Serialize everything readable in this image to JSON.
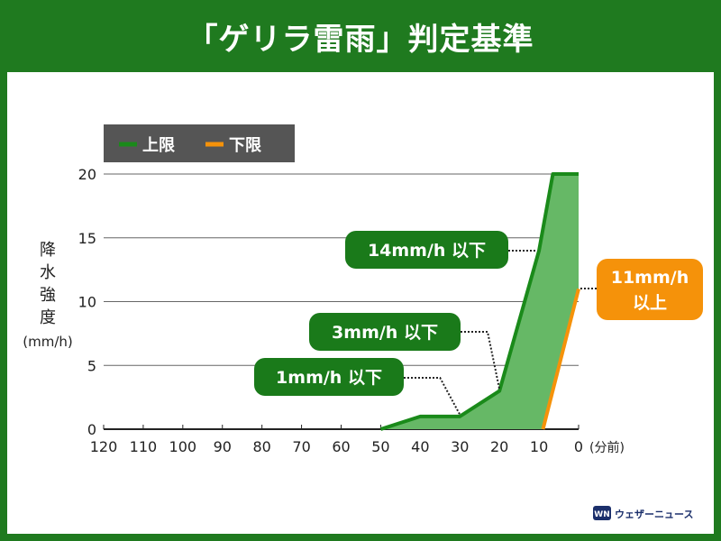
{
  "title": "「ゲリラ雷雨」判定基準",
  "chart_data": {
    "type": "area",
    "title": "「ゲリラ雷雨」判定基準",
    "ylabel_lines": [
      "降",
      "水",
      "強",
      "度"
    ],
    "ylabel_unit": "(mm/h)",
    "xlabel_unit": "(分前)",
    "x_ticks": [
      120,
      110,
      100,
      90,
      80,
      70,
      60,
      50,
      40,
      30,
      20,
      10,
      0
    ],
    "y_ticks": [
      0,
      5,
      10,
      15,
      20
    ],
    "xlim": [
      120,
      0
    ],
    "ylim": [
      0,
      20
    ],
    "grid": true,
    "legend_position": "top-left",
    "series": [
      {
        "name": "上限",
        "color": "#1a8a1a",
        "points": [
          [
            50,
            0
          ],
          [
            40,
            1
          ],
          [
            30,
            1
          ],
          [
            20,
            3
          ],
          [
            10,
            14
          ],
          [
            6.5,
            20
          ],
          [
            0,
            20
          ]
        ]
      },
      {
        "name": "下限",
        "color": "#f5920a",
        "points": [
          [
            9,
            0
          ],
          [
            0,
            11
          ]
        ]
      }
    ],
    "fill_color": "#66b866",
    "annotations": [
      {
        "text": "1mm/h 以下",
        "color": "#1a7a1a",
        "target": [
          30,
          1
        ]
      },
      {
        "text": "3mm/h 以下",
        "color": "#1a7a1a",
        "target": [
          20,
          3
        ]
      },
      {
        "text": "14mm/h 以下",
        "color": "#1a7a1a",
        "target": [
          10,
          14
        ]
      },
      {
        "text_lines": [
          "11mm/h",
          "以上"
        ],
        "color": "#f5920a",
        "target": [
          0,
          11
        ]
      }
    ]
  },
  "logo": {
    "mark": "WN",
    "text": "ウェザーニュース",
    "icon": "weathernews-logo-icon"
  }
}
